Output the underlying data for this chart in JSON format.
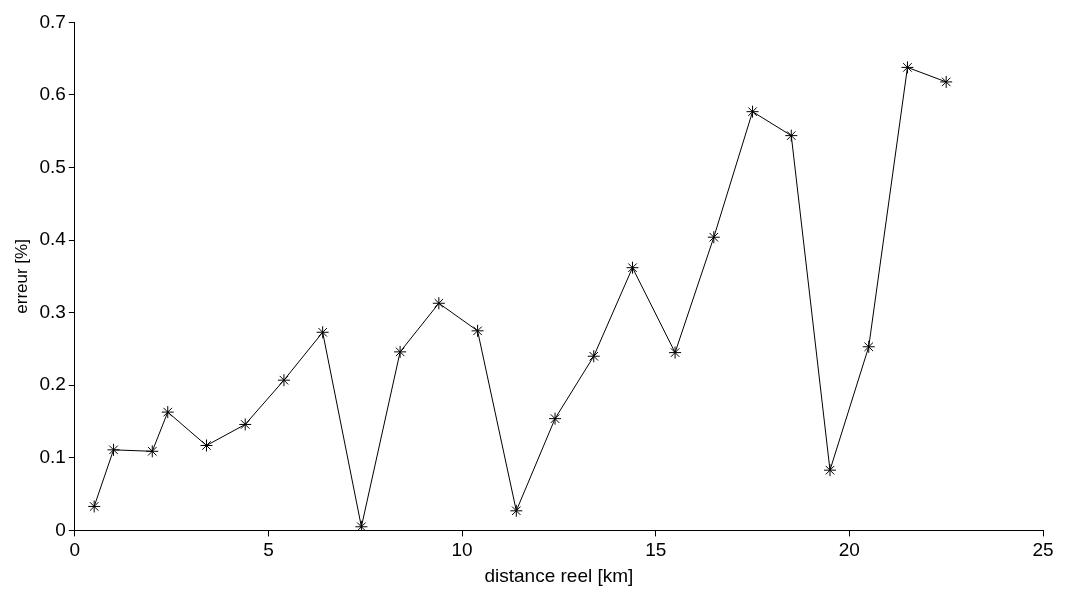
{
  "chart_data": {
    "type": "line",
    "xlabel": "distance reel [km]",
    "ylabel": "erreur [%]",
    "x": [
      0.5,
      1,
      2,
      2.4,
      3.4,
      4.4,
      5.4,
      6.4,
      7.4,
      8.4,
      9.4,
      10.4,
      11.4,
      12.4,
      13.4,
      14.4,
      15.5,
      16.5,
      17.5,
      18.5,
      19.5,
      20.5,
      21.5,
      22.5
    ],
    "series": [
      {
        "color": "#000000",
        "values": [
          0.033,
          0.111,
          0.109,
          0.163,
          0.117,
          0.146,
          0.207,
          0.273,
          0.005,
          0.246,
          0.313,
          0.275,
          0.027,
          0.154,
          0.24,
          0.362,
          0.245,
          0.404,
          0.577,
          0.544,
          0.083,
          0.253,
          0.638,
          0.618
        ]
      }
    ],
    "xlim": [
      0,
      25
    ],
    "xticks": [
      0,
      5,
      10,
      15,
      20,
      25
    ],
    "ylim": [
      0,
      0.7
    ],
    "yticks": [
      0,
      0.1,
      0.2,
      0.3,
      0.4,
      0.5,
      0.6,
      0.7
    ],
    "grid": false,
    "legend": false,
    "marker": "cross",
    "line_style": "solid"
  }
}
